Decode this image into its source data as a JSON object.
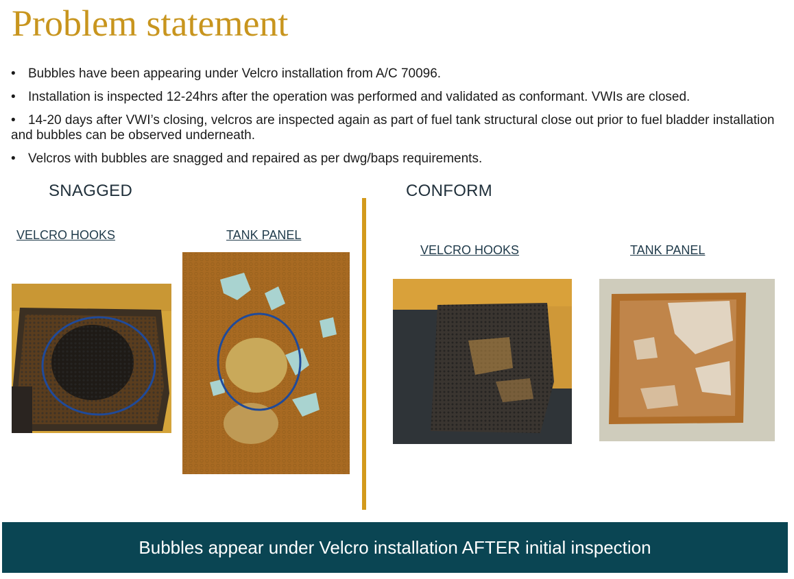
{
  "title": "Problem statement",
  "bullets": [
    "Bubbles have been appearing under Velcro installation from A/C 70096.",
    "Installation is inspected 12-24hrs after the operation was performed and validated as conformant. VWIs are closed.",
    "14-20 days after VWI’s closing, velcros are inspected again as part of fuel tank structural close out prior to fuel bladder installation and bubbles can be observed underneath.",
    "Velcros with bubbles are snagged and repaired as per dwg/baps requirements."
  ],
  "bullet_symbol": "•",
  "snagged": {
    "heading": "SNAGGED",
    "left_label": "VELCRO HOOKS",
    "right_label": "TANK PANEL"
  },
  "conform": {
    "heading": "CONFORM",
    "left_label": "VELCRO HOOKS",
    "right_label": "TANK PANEL"
  },
  "banner": "Bubbles appear under Velcro installation AFTER initial inspection",
  "colors": {
    "title": "#c8951e",
    "divider": "#d39a1c",
    "banner_bg": "#0a4553",
    "circle": "#1f4a9a"
  }
}
